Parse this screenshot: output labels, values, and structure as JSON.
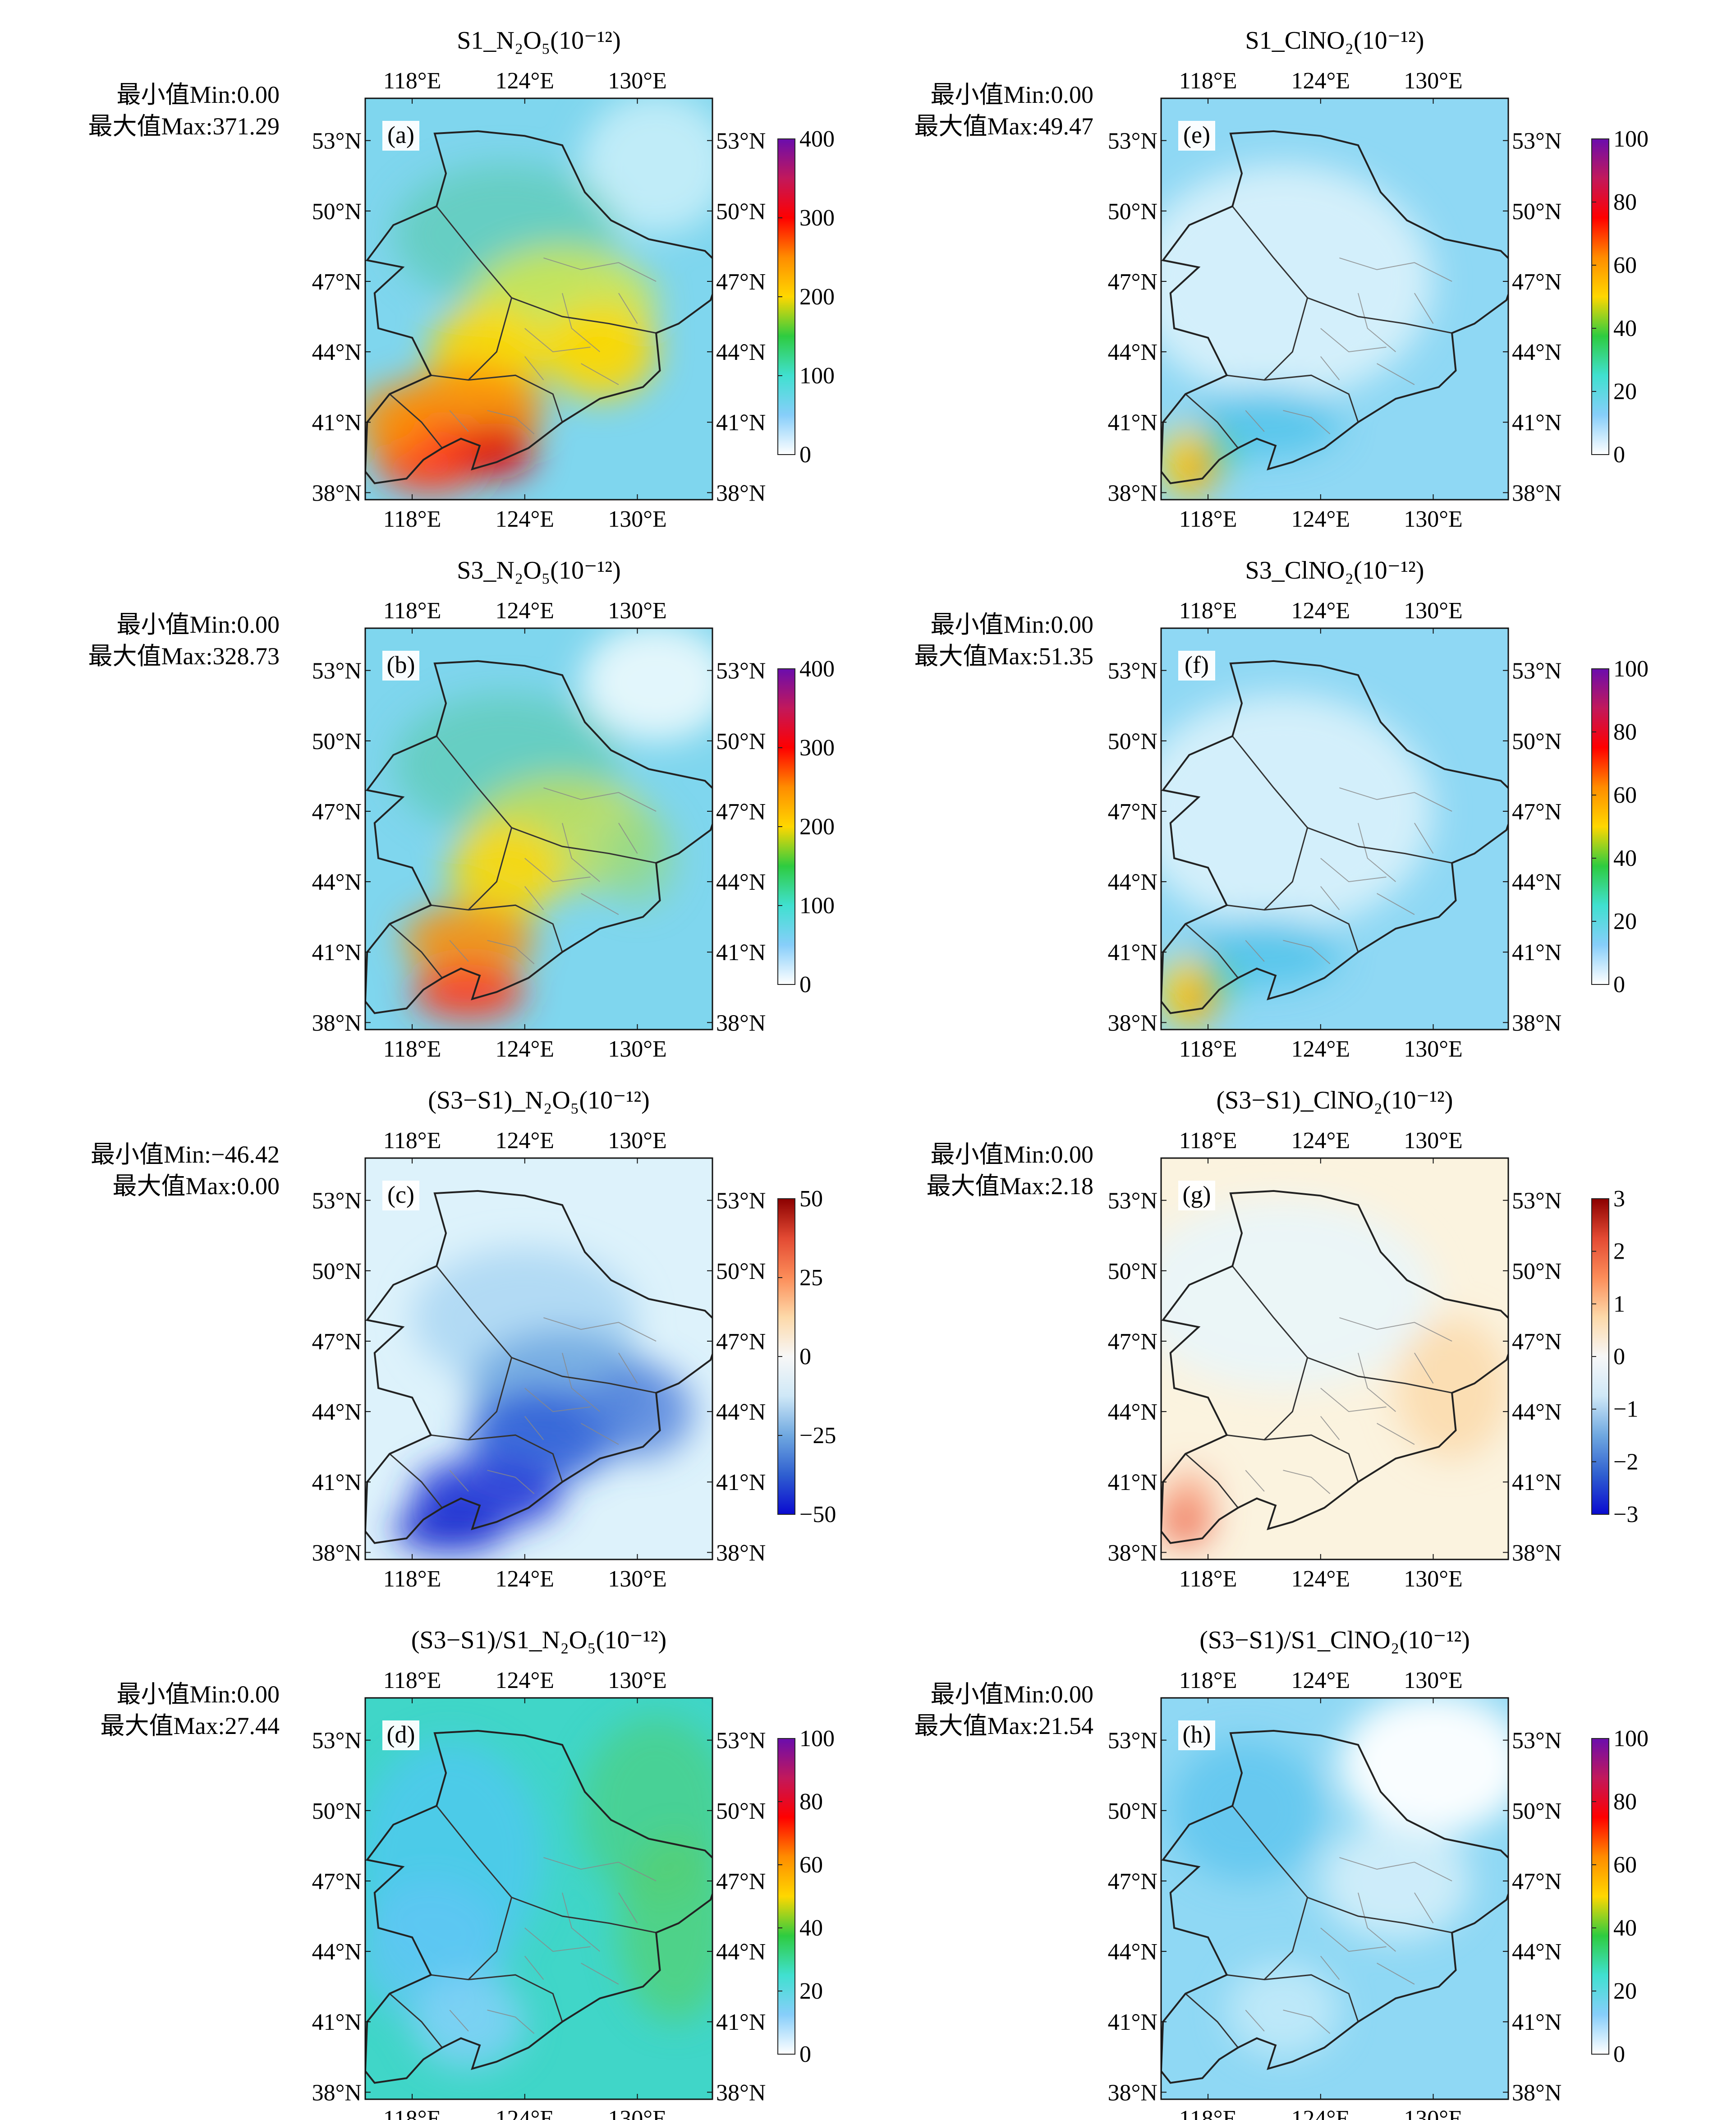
{
  "lon_labels": [
    "118°E",
    "124°E",
    "130°E"
  ],
  "lat_labels": [
    "53°N",
    "50°N",
    "47°N",
    "44°N",
    "41°N",
    "38°N"
  ],
  "colorbars": {
    "rainbow400": {
      "ticks": [
        "400",
        "300",
        "200",
        "100",
        "0"
      ],
      "colors": [
        "#6a0dad",
        "#c2185b",
        "#ff0000",
        "#ff8c00",
        "#ffd700",
        "#2ecc40",
        "#40e0d0",
        "#87cefa",
        "#ffffff"
      ]
    },
    "rainbow100": {
      "ticks": [
        "100",
        "80",
        "60",
        "40",
        "20",
        "0"
      ],
      "colors": [
        "#6a0dad",
        "#c2185b",
        "#ff0000",
        "#ff8c00",
        "#ffd700",
        "#2ecc40",
        "#40e0d0",
        "#87cefa",
        "#ffffff"
      ]
    },
    "diverging50": {
      "ticks": [
        "50",
        "25",
        "0",
        "−25",
        "−50"
      ],
      "colors": [
        "#8b0000",
        "#e34a33",
        "#fc8d59",
        "#fdd9a9",
        "#f7f7f7",
        "#cfe8f7",
        "#6fa8e0",
        "#2f5fd0",
        "#0a0ad0"
      ]
    },
    "diverging3": {
      "ticks": [
        "3",
        "2",
        "1",
        "0",
        "−1",
        "−2",
        "−3"
      ],
      "colors": [
        "#8b0000",
        "#e34a33",
        "#fc8d59",
        "#fdd9a9",
        "#f7f7f7",
        "#cfe8f7",
        "#6fa8e0",
        "#2f5fd0",
        "#0a0ad0"
      ]
    }
  },
  "panels": [
    {
      "id": "a",
      "letter": "(a)",
      "title": "S1_N₂O₅(10⁻¹²)",
      "min_label": "最小值Min:0.00",
      "max_label": "最大值Max:371.29",
      "colorbar": "rainbow400",
      "style": "n2o5_s1"
    },
    {
      "id": "b",
      "letter": "(b)",
      "title": "S3_N₂O₅(10⁻¹²)",
      "min_label": "最小值Min:0.00",
      "max_label": "最大值Max:328.73",
      "colorbar": "rainbow400",
      "style": "n2o5_s3"
    },
    {
      "id": "c",
      "letter": "(c)",
      "title": "(S3−S1)_N₂O₅(10⁻¹²)",
      "min_label": "最小值Min:−46.42",
      "max_label": "最大值Max:0.00",
      "colorbar": "diverging50",
      "style": "n2o5_diff"
    },
    {
      "id": "d",
      "letter": "(d)",
      "title": "(S3−S1)/S1_N₂O₅(10⁻¹²)",
      "min_label": "最小值Min:0.00",
      "max_label": "最大值Max:27.44",
      "colorbar": "rainbow100",
      "style": "n2o5_ratio"
    },
    {
      "id": "e",
      "letter": "(e)",
      "title": "S1_ClNO₂(10⁻¹²)",
      "min_label": "最小值Min:0.00",
      "max_label": "最大值Max:49.47",
      "colorbar": "rainbow100",
      "style": "clno2_s1"
    },
    {
      "id": "f",
      "letter": "(f)",
      "title": "S3_ClNO₂(10⁻¹²)",
      "min_label": "最小值Min:0.00",
      "max_label": "最大值Max:51.35",
      "colorbar": "rainbow100",
      "style": "clno2_s3"
    },
    {
      "id": "g",
      "letter": "(g)",
      "title": "(S3−S1)_ClNO₂(10⁻¹²)",
      "min_label": "最小值Min:0.00",
      "max_label": "最大值Max:2.18",
      "colorbar": "diverging3",
      "style": "clno2_diff"
    },
    {
      "id": "h",
      "letter": "(h)",
      "title": "(S3−S1)/S1_ClNO₂(10⁻¹²)",
      "min_label": "最小值Min:0.00",
      "max_label": "最大值Max:21.54",
      "colorbar": "rainbow100",
      "style": "clno2_ratio"
    }
  ]
}
